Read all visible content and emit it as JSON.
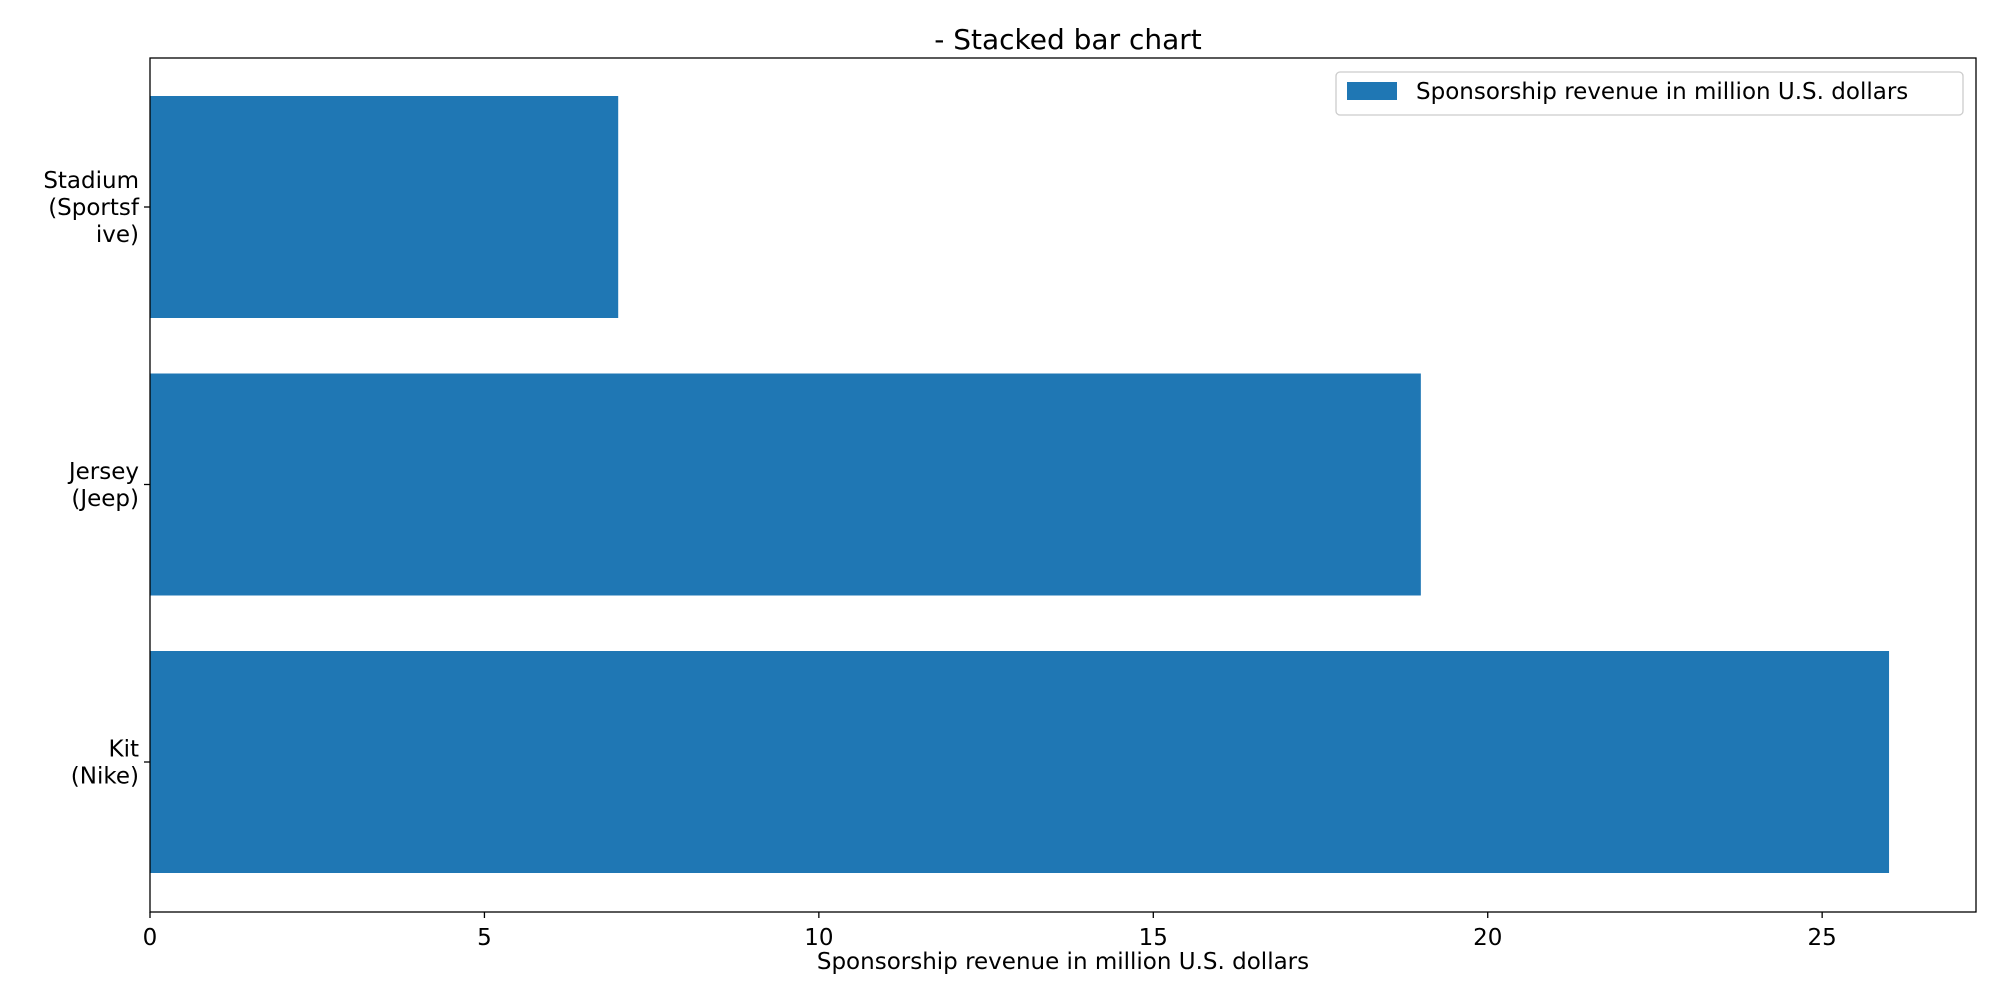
{
  "chart_data": {
    "type": "bar",
    "orientation": "horizontal",
    "title": "- Stacked bar chart",
    "xlabel": "Sponsorship revenue in million U.S. dollars",
    "ylabel": "",
    "categories": [
      [
        "Stadium",
        "(Sportsf",
        "ive)"
      ],
      [
        "Jersey",
        "(Jeep)"
      ],
      [
        "Kit",
        "(Nike)"
      ]
    ],
    "series": [
      {
        "name": "Sponsorship revenue in million U.S. dollars",
        "color": "#1f77b4",
        "values": [
          7,
          19,
          26
        ]
      }
    ],
    "xlim": [
      0,
      27.3
    ],
    "xticks": [
      0,
      5,
      10,
      15,
      20,
      25
    ],
    "legend": {
      "position": "upper-right"
    },
    "grid": false
  }
}
